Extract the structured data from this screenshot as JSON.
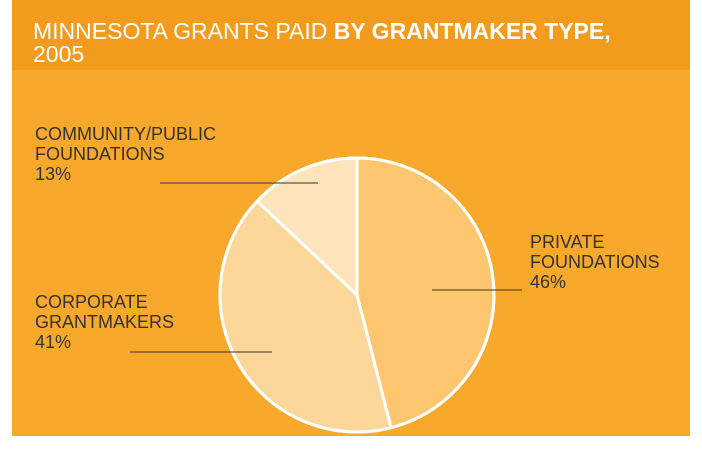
{
  "chart_data": {
    "type": "pie",
    "title": "MINNESOTA GRANTS PAID",
    "title_bold": "BY GRANTMAKER TYPE,",
    "subtitle": "2005",
    "categories": [
      "PRIVATE FOUNDATIONS",
      "CORPORATE GRANTMAKERS",
      "COMMUNITY/PUBLIC FOUNDATIONS"
    ],
    "values": [
      46,
      41,
      13
    ],
    "value_labels": [
      "46%",
      "41%",
      "13%"
    ],
    "colors": [
      "#fdc66f",
      "#fdd799",
      "#fee4bb"
    ]
  }
}
